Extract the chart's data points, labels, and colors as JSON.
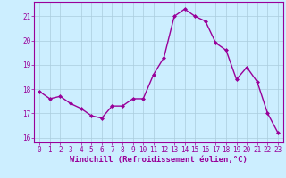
{
  "x": [
    0,
    1,
    2,
    3,
    4,
    5,
    6,
    7,
    8,
    9,
    10,
    11,
    12,
    13,
    14,
    15,
    16,
    17,
    18,
    19,
    20,
    21,
    22,
    23
  ],
  "y": [
    17.9,
    17.6,
    17.7,
    17.4,
    17.2,
    16.9,
    16.8,
    17.3,
    17.3,
    17.6,
    17.6,
    18.6,
    19.3,
    21.0,
    21.3,
    21.0,
    20.8,
    19.9,
    19.6,
    18.4,
    18.9,
    18.3,
    17.0,
    16.2
  ],
  "line_color": "#990099",
  "marker": "D",
  "marker_size": 2.0,
  "bg_color": "#cceeff",
  "grid_color": "#aaccdd",
  "xlabel": "Windchill (Refroidissement éolien,°C)",
  "xlabel_color": "#990099",
  "tick_color": "#990099",
  "spine_color": "#990099",
  "ylim": [
    15.8,
    21.6
  ],
  "yticks": [
    16,
    17,
    18,
    19,
    20,
    21
  ],
  "xlim": [
    -0.5,
    23.5
  ],
  "xticks": [
    0,
    1,
    2,
    3,
    4,
    5,
    6,
    7,
    8,
    9,
    10,
    11,
    12,
    13,
    14,
    15,
    16,
    17,
    18,
    19,
    20,
    21,
    22,
    23
  ],
  "tick_fontsize": 5.5,
  "xlabel_fontsize": 6.5,
  "line_width": 1.0
}
